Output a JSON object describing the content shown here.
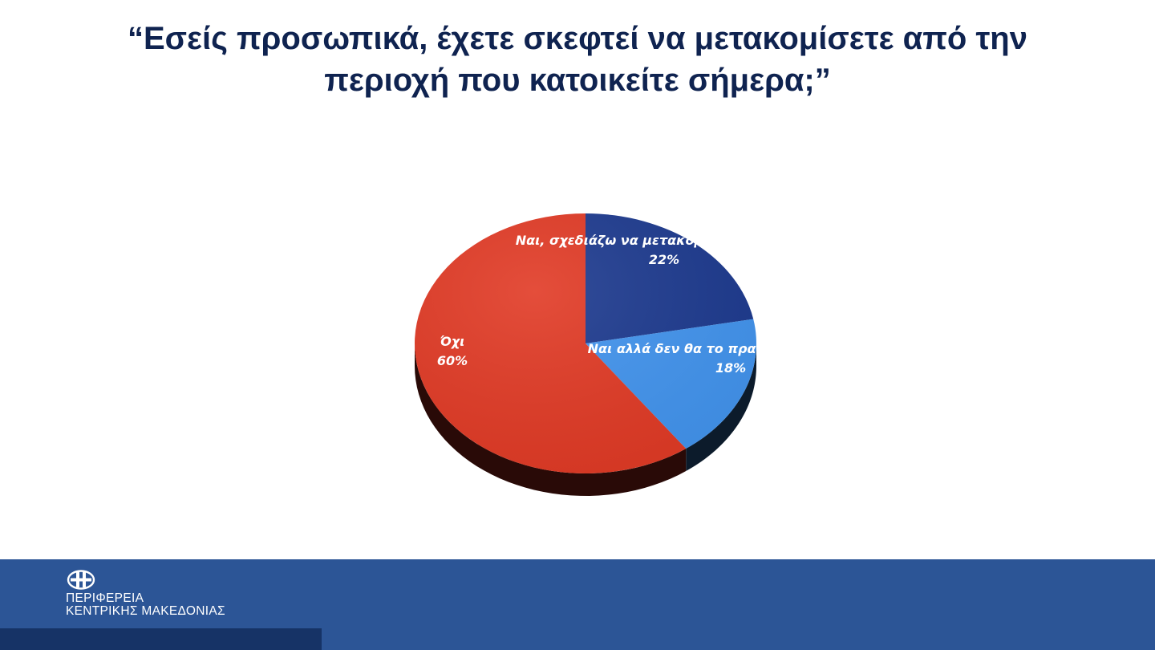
{
  "title": {
    "line1": "“Εσείς προσωπικά, έχετε σκεφτεί να μετακομίσετε από την",
    "line2": "περιοχή που κατοικείτε σήμερα;”"
  },
  "chart_data": {
    "type": "pie",
    "three_d": true,
    "start_angle_deg": 90,
    "direction": "clockwise",
    "slices": [
      {
        "label": "Ναι, σχεδιάζω να μετακομ",
        "value": 22,
        "value_label": "22%",
        "color": "#1d3a8f"
      },
      {
        "label": "Ναι αλλά δεν θα το πραγ",
        "value": 18,
        "value_label": "18%",
        "color": "#4294ee"
      },
      {
        "label": "Όχι",
        "value": 60,
        "value_label": "60%",
        "color": "#e13a25"
      }
    ]
  },
  "footer": {
    "org_line1": "ΠΕΡΙΦΕΡΕΙΑ",
    "org_line2": "ΚΕΝΤΡΙΚΗΣ ΜΑΚΕΔΟΝΙΑΣ",
    "logo_icon": "region-emblem-icon",
    "background_color": "#2c5596",
    "strip_color": "#163366"
  }
}
